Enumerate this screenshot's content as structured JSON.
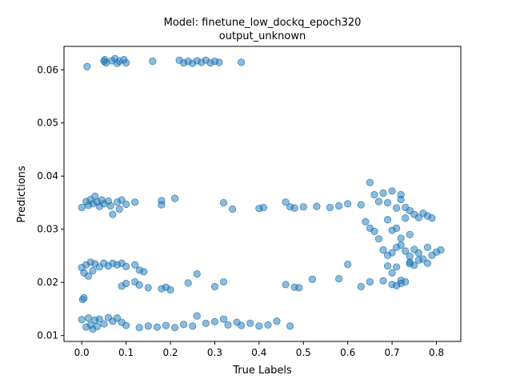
{
  "chart_data": {
    "type": "scatter",
    "title": "Model: finetune_low_dockq_epoch320",
    "subtitle": "output_unknown",
    "xlabel": "True Labels",
    "ylabel": "Predictions",
    "xlim": [
      -0.04,
      0.855
    ],
    "ylim": [
      0.0089,
      0.0644
    ],
    "xticks": [
      "0.0",
      "0.1",
      "0.2",
      "0.3",
      "0.4",
      "0.5",
      "0.6",
      "0.7",
      "0.8"
    ],
    "yticks": [
      "0.01",
      "0.02",
      "0.03",
      "0.04",
      "0.05",
      "0.06"
    ],
    "grid": false,
    "marker_color": "#1f77b4",
    "marker_alpha": 0.5,
    "series": [
      {
        "values": [
          [
            0.012,
            0.0606
          ],
          [
            0.05,
            0.0616
          ],
          [
            0.052,
            0.0619
          ],
          [
            0.055,
            0.0613
          ],
          [
            0.068,
            0.0617
          ],
          [
            0.075,
            0.0621
          ],
          [
            0.08,
            0.0612
          ],
          [
            0.085,
            0.0616
          ],
          [
            0.095,
            0.0619
          ],
          [
            0.1,
            0.0613
          ],
          [
            0.16,
            0.0616
          ],
          [
            0.22,
            0.0618
          ],
          [
            0.23,
            0.0613
          ],
          [
            0.24,
            0.0616
          ],
          [
            0.25,
            0.0612
          ],
          [
            0.26,
            0.0617
          ],
          [
            0.27,
            0.0614
          ],
          [
            0.28,
            0.0618
          ],
          [
            0.29,
            0.0613
          ],
          [
            0.3,
            0.0616
          ],
          [
            0.31,
            0.0614
          ],
          [
            0.36,
            0.0614
          ],
          [
            0.0,
            0.0341
          ],
          [
            0.01,
            0.0352
          ],
          [
            0.015,
            0.0345
          ],
          [
            0.02,
            0.0356
          ],
          [
            0.025,
            0.0348
          ],
          [
            0.03,
            0.0362
          ],
          [
            0.035,
            0.0351
          ],
          [
            0.04,
            0.0343
          ],
          [
            0.045,
            0.0355
          ],
          [
            0.05,
            0.0348
          ],
          [
            0.06,
            0.0353
          ],
          [
            0.065,
            0.0344
          ],
          [
            0.07,
            0.0328
          ],
          [
            0.08,
            0.0351
          ],
          [
            0.085,
            0.0338
          ],
          [
            0.09,
            0.0355
          ],
          [
            0.1,
            0.0347
          ],
          [
            0.12,
            0.0351
          ],
          [
            0.18,
            0.0354
          ],
          [
            0.18,
            0.0346
          ],
          [
            0.21,
            0.0358
          ],
          [
            0.32,
            0.035
          ],
          [
            0.34,
            0.0338
          ],
          [
            0.4,
            0.0339
          ],
          [
            0.41,
            0.0341
          ],
          [
            0.46,
            0.0351
          ],
          [
            0.47,
            0.0342
          ],
          [
            0.48,
            0.034
          ],
          [
            0.5,
            0.0342
          ],
          [
            0.53,
            0.0343
          ],
          [
            0.56,
            0.0341
          ],
          [
            0.58,
            0.0344
          ],
          [
            0.6,
            0.0348
          ],
          [
            0.63,
            0.0346
          ],
          [
            0.65,
            0.0388
          ],
          [
            0.66,
            0.0365
          ],
          [
            0.67,
            0.0352
          ],
          [
            0.0,
            0.0228
          ],
          [
            0.005,
            0.0218
          ],
          [
            0.01,
            0.0233
          ],
          [
            0.015,
            0.0212
          ],
          [
            0.02,
            0.0238
          ],
          [
            0.025,
            0.0222
          ],
          [
            0.03,
            0.0235
          ],
          [
            0.04,
            0.0229
          ],
          [
            0.05,
            0.0236
          ],
          [
            0.06,
            0.0231
          ],
          [
            0.07,
            0.0236
          ],
          [
            0.08,
            0.0233
          ],
          [
            0.09,
            0.0236
          ],
          [
            0.1,
            0.023
          ],
          [
            0.12,
            0.0233
          ],
          [
            0.13,
            0.0223
          ],
          [
            0.14,
            0.022
          ],
          [
            0.09,
            0.0193
          ],
          [
            0.1,
            0.0198
          ],
          [
            0.12,
            0.0201
          ],
          [
            0.13,
            0.0195
          ],
          [
            0.15,
            0.019
          ],
          [
            0.18,
            0.0188
          ],
          [
            0.19,
            0.0191
          ],
          [
            0.2,
            0.0186
          ],
          [
            0.24,
            0.0199
          ],
          [
            0.26,
            0.0216
          ],
          [
            0.3,
            0.0192
          ],
          [
            0.32,
            0.0201
          ],
          [
            0.46,
            0.0196
          ],
          [
            0.48,
            0.0191
          ],
          [
            0.49,
            0.019
          ],
          [
            0.52,
            0.0206
          ],
          [
            0.58,
            0.0207
          ],
          [
            0.6,
            0.0234
          ],
          [
            0.63,
            0.0192
          ],
          [
            0.65,
            0.0201
          ],
          [
            0.002,
            0.0168
          ],
          [
            0.005,
            0.0171
          ],
          [
            0.0,
            0.013
          ],
          [
            0.01,
            0.0116
          ],
          [
            0.015,
            0.0133
          ],
          [
            0.02,
            0.012
          ],
          [
            0.025,
            0.0112
          ],
          [
            0.03,
            0.0129
          ],
          [
            0.035,
            0.0117
          ],
          [
            0.04,
            0.0131
          ],
          [
            0.05,
            0.0122
          ],
          [
            0.06,
            0.0134
          ],
          [
            0.07,
            0.0127
          ],
          [
            0.08,
            0.0133
          ],
          [
            0.09,
            0.0125
          ],
          [
            0.1,
            0.0119
          ],
          [
            0.13,
            0.0115
          ],
          [
            0.15,
            0.0118
          ],
          [
            0.17,
            0.0116
          ],
          [
            0.19,
            0.0119
          ],
          [
            0.21,
            0.0115
          ],
          [
            0.23,
            0.0121
          ],
          [
            0.25,
            0.0118
          ],
          [
            0.26,
            0.0137
          ],
          [
            0.28,
            0.0123
          ],
          [
            0.3,
            0.0126
          ],
          [
            0.32,
            0.0131
          ],
          [
            0.33,
            0.012
          ],
          [
            0.35,
            0.0125
          ],
          [
            0.36,
            0.0119
          ],
          [
            0.38,
            0.0123
          ],
          [
            0.4,
            0.0118
          ],
          [
            0.42,
            0.012
          ],
          [
            0.44,
            0.0127
          ],
          [
            0.47,
            0.0118
          ],
          [
            0.68,
            0.0368
          ],
          [
            0.69,
            0.035
          ],
          [
            0.7,
            0.0372
          ],
          [
            0.71,
            0.034
          ],
          [
            0.72,
            0.0356
          ],
          [
            0.72,
            0.0365
          ],
          [
            0.73,
            0.0341
          ],
          [
            0.74,
            0.0335
          ],
          [
            0.75,
            0.0328
          ],
          [
            0.76,
            0.0322
          ],
          [
            0.77,
            0.033
          ],
          [
            0.78,
            0.0325
          ],
          [
            0.79,
            0.0321
          ],
          [
            0.69,
            0.0318
          ],
          [
            0.7,
            0.0298
          ],
          [
            0.71,
            0.0302
          ],
          [
            0.72,
            0.0283
          ],
          [
            0.73,
            0.0321
          ],
          [
            0.74,
            0.029
          ],
          [
            0.64,
            0.0314
          ],
          [
            0.65,
            0.0302
          ],
          [
            0.66,
            0.0296
          ],
          [
            0.67,
            0.0282
          ],
          [
            0.68,
            0.0261
          ],
          [
            0.69,
            0.0251
          ],
          [
            0.7,
            0.0256
          ],
          [
            0.71,
            0.0266
          ],
          [
            0.72,
            0.027
          ],
          [
            0.73,
            0.0259
          ],
          [
            0.74,
            0.0249
          ],
          [
            0.75,
            0.0262
          ],
          [
            0.76,
            0.0255
          ],
          [
            0.77,
            0.0244
          ],
          [
            0.78,
            0.0266
          ],
          [
            0.79,
            0.0251
          ],
          [
            0.8,
            0.0257
          ],
          [
            0.81,
            0.0261
          ],
          [
            0.69,
            0.0231
          ],
          [
            0.7,
            0.0218
          ],
          [
            0.71,
            0.0229
          ],
          [
            0.72,
            0.0204
          ],
          [
            0.73,
            0.0201
          ],
          [
            0.74,
            0.0238
          ],
          [
            0.75,
            0.0232
          ],
          [
            0.68,
            0.0203
          ],
          [
            0.7,
            0.0196
          ],
          [
            0.71,
            0.0194
          ],
          [
            0.72,
            0.0198
          ],
          [
            0.74,
            0.0235
          ],
          [
            0.76,
            0.0242
          ],
          [
            0.78,
            0.0236
          ]
        ]
      }
    ]
  }
}
